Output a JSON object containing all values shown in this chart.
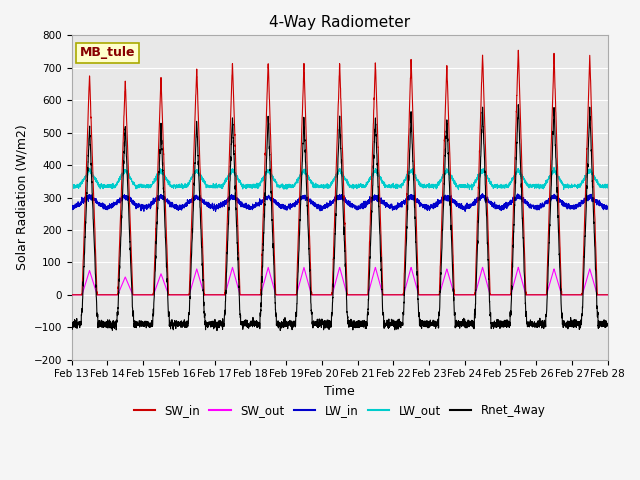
{
  "title": "4-Way Radiometer",
  "xlabel": "Time",
  "ylabel": "Solar Radiation (W/m2)",
  "annotation": "MB_tule",
  "ylim": [
    -200,
    800
  ],
  "yticks": [
    -200,
    -100,
    0,
    100,
    200,
    300,
    400,
    500,
    600,
    700,
    800
  ],
  "x_labels": [
    "Feb 13",
    "Feb 14",
    "Feb 15",
    "Feb 16",
    "Feb 17",
    "Feb 18",
    "Feb 19",
    "Feb 20",
    "Feb 21",
    "Feb 22",
    "Feb 23",
    "Feb 24",
    "Feb 25",
    "Feb 26",
    "Feb 27",
    "Feb 28"
  ],
  "n_days": 15,
  "points_per_day": 288,
  "SW_in_peaks": [
    680,
    660,
    670,
    700,
    720,
    720,
    710,
    715,
    720,
    725,
    710,
    745,
    760,
    740,
    735
  ],
  "SW_out_peaks": [
    75,
    55,
    65,
    80,
    85,
    85,
    85,
    85,
    85,
    85,
    80,
    85,
    85,
    80,
    80
  ],
  "LW_in_base": 268,
  "LW_out_base": 335,
  "Rnet_night": -90,
  "colors": {
    "SW_in": "#cc0000",
    "SW_out": "#ff00ff",
    "LW_in": "#0000cc",
    "LW_out": "#00cccc",
    "Rnet_4way": "#000000"
  },
  "bg_color": "#e8e8e8",
  "grid_color": "#ffffff"
}
